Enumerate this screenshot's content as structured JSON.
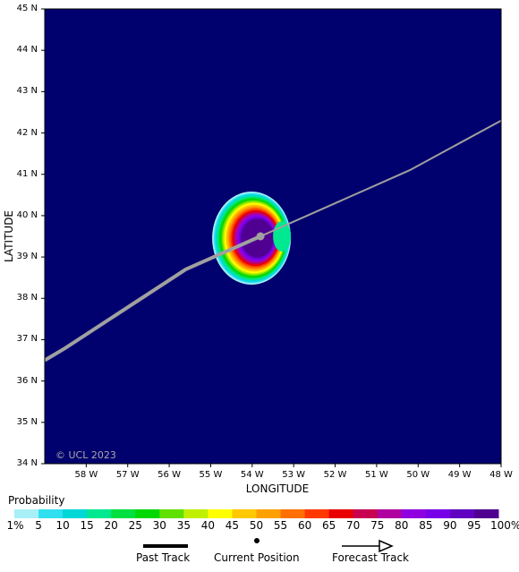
{
  "map": {
    "background_color": "#00006e",
    "track_color": "#a0a0a0",
    "copyright": "© UCL 2023",
    "x_axis_label": "LONGITUDE",
    "y_axis_label": "LATITUDE",
    "x_ticks": [
      "58 W",
      "57 W",
      "56 W",
      "55 W",
      "54 W",
      "53 W",
      "52 W",
      "51 W",
      "50 W",
      "49 W",
      "48 W"
    ],
    "y_ticks": [
      "45 N",
      "44 N",
      "43 N",
      "42 N",
      "41 N",
      "40 N",
      "39 N",
      "38 N",
      "37 N",
      "36 N",
      "35 N",
      "34 N"
    ],
    "current_position": {
      "lon": -53.8,
      "lat": 39.5
    },
    "past_track": [
      [
        -59.0,
        36.5
      ],
      [
        -58.5,
        36.8
      ],
      [
        -55.6,
        38.7
      ],
      [
        -53.8,
        39.5
      ]
    ],
    "forecast_track": [
      [
        -53.8,
        39.5
      ],
      [
        -50.2,
        41.1
      ],
      [
        -48.0,
        42.3
      ]
    ]
  },
  "colorbar": {
    "title": "Probability",
    "labels": [
      "1%",
      "5",
      "10",
      "15",
      "20",
      "25",
      "30",
      "35",
      "40",
      "45",
      "50",
      "55",
      "60",
      "65",
      "70",
      "75",
      "80",
      "85",
      "90",
      "95",
      "100%"
    ],
    "colors": [
      "#a8f0f8",
      "#30e0f0",
      "#00d8d8",
      "#00e890",
      "#00e040",
      "#00d800",
      "#60e000",
      "#c0f000",
      "#ffff00",
      "#ffc800",
      "#ffa000",
      "#ff7000",
      "#ff3800",
      "#e80000",
      "#c80050",
      "#b000a0",
      "#9000e0",
      "#7800e8",
      "#6000c0",
      "#500090"
    ]
  },
  "legend": {
    "past_track": "Past Track",
    "current_position": "Current Position",
    "forecast_track": "Forecast Track"
  }
}
